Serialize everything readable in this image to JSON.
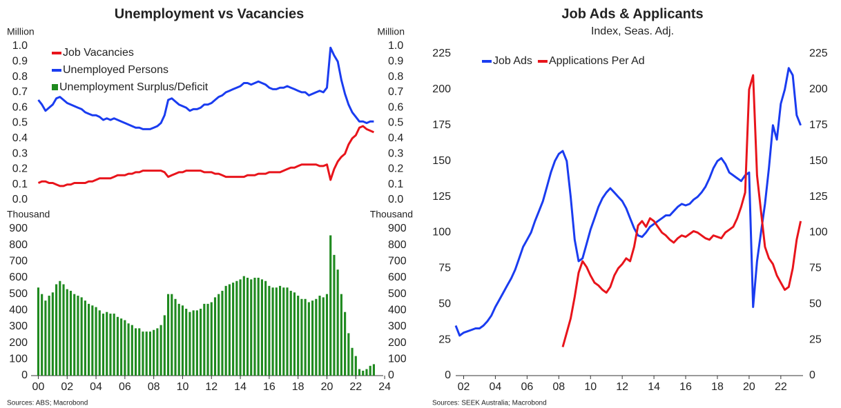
{
  "chart_data": [
    {
      "type": "line",
      "title": "Unemployment vs Vacancies",
      "y_label": "Million",
      "y2_label": "Million",
      "x": [
        2000,
        2000.25,
        2000.5,
        2000.75,
        2001,
        2001.25,
        2001.5,
        2001.75,
        2002,
        2002.25,
        2002.5,
        2002.75,
        2003,
        2003.25,
        2003.5,
        2003.75,
        2004,
        2004.25,
        2004.5,
        2004.75,
        2005,
        2005.25,
        2005.5,
        2005.75,
        2006,
        2006.25,
        2006.5,
        2006.75,
        2007,
        2007.25,
        2007.5,
        2007.75,
        2008,
        2008.25,
        2008.5,
        2008.75,
        2009,
        2009.25,
        2009.5,
        2009.75,
        2010,
        2010.25,
        2010.5,
        2010.75,
        2011,
        2011.25,
        2011.5,
        2011.75,
        2012,
        2012.25,
        2012.5,
        2012.75,
        2013,
        2013.25,
        2013.5,
        2013.75,
        2014,
        2014.25,
        2014.5,
        2014.75,
        2015,
        2015.25,
        2015.5,
        2015.75,
        2016,
        2016.25,
        2016.5,
        2016.75,
        2017,
        2017.25,
        2017.5,
        2017.75,
        2018,
        2018.25,
        2018.5,
        2018.75,
        2019,
        2019.25,
        2019.5,
        2019.75,
        2020,
        2020.25,
        2020.5,
        2020.75,
        2021,
        2021.25,
        2021.5,
        2021.75,
        2022,
        2022.25,
        2022.5,
        2022.75,
        2023,
        2023.25
      ],
      "series": [
        {
          "name": "Job Vacancies",
          "color": "#e8141b",
          "values": [
            0.11,
            0.12,
            0.12,
            0.11,
            0.11,
            0.1,
            0.09,
            0.09,
            0.1,
            0.1,
            0.11,
            0.11,
            0.11,
            0.11,
            0.12,
            0.12,
            0.13,
            0.14,
            0.14,
            0.14,
            0.14,
            0.15,
            0.16,
            0.16,
            0.16,
            0.17,
            0.17,
            0.18,
            0.18,
            0.19,
            0.19,
            0.19,
            0.19,
            0.19,
            0.19,
            0.18,
            0.15,
            0.16,
            0.17,
            0.18,
            0.18,
            0.19,
            0.19,
            0.19,
            0.19,
            0.19,
            0.18,
            0.18,
            0.18,
            0.17,
            0.17,
            0.16,
            0.15,
            0.15,
            0.15,
            0.15,
            0.15,
            0.15,
            0.16,
            0.16,
            0.16,
            0.17,
            0.17,
            0.17,
            0.18,
            0.18,
            0.18,
            0.18,
            0.19,
            0.2,
            0.21,
            0.21,
            0.22,
            0.23,
            0.23,
            0.23,
            0.23,
            0.23,
            0.22,
            0.22,
            0.23,
            0.13,
            0.2,
            0.25,
            0.28,
            0.3,
            0.36,
            0.4,
            0.42,
            0.47,
            0.48,
            0.46,
            0.45,
            0.44
          ]
        },
        {
          "name": "Unemployed Persons",
          "color": "#1a3cf0",
          "values": [
            0.65,
            0.62,
            0.58,
            0.6,
            0.62,
            0.66,
            0.67,
            0.65,
            0.63,
            0.62,
            0.61,
            0.6,
            0.59,
            0.57,
            0.56,
            0.55,
            0.55,
            0.54,
            0.52,
            0.53,
            0.52,
            0.53,
            0.52,
            0.51,
            0.5,
            0.49,
            0.48,
            0.47,
            0.47,
            0.46,
            0.46,
            0.46,
            0.47,
            0.48,
            0.5,
            0.55,
            0.65,
            0.66,
            0.64,
            0.62,
            0.61,
            0.6,
            0.58,
            0.59,
            0.59,
            0.6,
            0.62,
            0.62,
            0.63,
            0.65,
            0.67,
            0.68,
            0.7,
            0.71,
            0.72,
            0.73,
            0.74,
            0.76,
            0.76,
            0.75,
            0.76,
            0.77,
            0.76,
            0.75,
            0.73,
            0.72,
            0.72,
            0.73,
            0.73,
            0.74,
            0.73,
            0.72,
            0.71,
            0.7,
            0.7,
            0.68,
            0.69,
            0.7,
            0.71,
            0.7,
            0.73,
            0.99,
            0.94,
            0.9,
            0.78,
            0.69,
            0.62,
            0.57,
            0.54,
            0.51,
            0.51,
            0.5,
            0.51,
            0.51
          ]
        }
      ],
      "xlim": [
        1999.5,
        2023.9
      ],
      "ylim": [
        0,
        1
      ],
      "yticks": [
        {
          "value": 0,
          "label": "0.0"
        },
        0.1,
        0.2,
        0.3,
        0.4,
        0.5,
        0.6,
        0.7,
        0.8,
        0.9,
        {
          "value": 1,
          "label": "1.0"
        }
      ],
      "y2lim": [
        0,
        1
      ],
      "y2ticks": [
        {
          "value": 0,
          "label": "0.0"
        },
        0.1,
        0.2,
        0.3,
        0.4,
        0.5,
        0.6,
        0.7,
        0.8,
        0.9,
        {
          "value": 1,
          "label": "1.0"
        }
      ]
    },
    {
      "type": "bar",
      "y_label": "Thousand",
      "y2_label": "Thousand",
      "source": "Sources: ABS; Macrobond",
      "x": [
        2000,
        2000.25,
        2000.5,
        2000.75,
        2001,
        2001.25,
        2001.5,
        2001.75,
        2002,
        2002.25,
        2002.5,
        2002.75,
        2003,
        2003.25,
        2003.5,
        2003.75,
        2004,
        2004.25,
        2004.5,
        2004.75,
        2005,
        2005.25,
        2005.5,
        2005.75,
        2006,
        2006.25,
        2006.5,
        2006.75,
        2007,
        2007.25,
        2007.5,
        2007.75,
        2008,
        2008.25,
        2008.5,
        2008.75,
        2009,
        2009.25,
        2009.5,
        2009.75,
        2010,
        2010.25,
        2010.5,
        2010.75,
        2011,
        2011.25,
        2011.5,
        2011.75,
        2012,
        2012.25,
        2012.5,
        2012.75,
        2013,
        2013.25,
        2013.5,
        2013.75,
        2014,
        2014.25,
        2014.5,
        2014.75,
        2015,
        2015.25,
        2015.5,
        2015.75,
        2016,
        2016.25,
        2016.5,
        2016.75,
        2017,
        2017.25,
        2017.5,
        2017.75,
        2018,
        2018.25,
        2018.5,
        2018.75,
        2019,
        2019.25,
        2019.5,
        2019.75,
        2020,
        2020.25,
        2020.5,
        2020.75,
        2021,
        2021.25,
        2021.5,
        2021.75,
        2022,
        2022.25,
        2022.5,
        2022.75,
        2023,
        2023.25
      ],
      "series": [
        {
          "name": "Unemployment Surplus/Deficit",
          "color": "#1f8a1f",
          "values": [
            540,
            500,
            460,
            490,
            510,
            560,
            580,
            560,
            530,
            520,
            500,
            490,
            480,
            460,
            440,
            430,
            420,
            400,
            380,
            390,
            380,
            380,
            360,
            350,
            340,
            320,
            310,
            290,
            290,
            270,
            270,
            270,
            280,
            290,
            310,
            370,
            500,
            500,
            470,
            440,
            430,
            410,
            390,
            400,
            400,
            410,
            440,
            440,
            450,
            480,
            500,
            520,
            550,
            560,
            570,
            580,
            590,
            610,
            600,
            590,
            600,
            600,
            590,
            580,
            550,
            540,
            540,
            550,
            540,
            540,
            520,
            510,
            490,
            470,
            470,
            450,
            460,
            470,
            490,
            480,
            500,
            860,
            740,
            650,
            500,
            390,
            260,
            170,
            120,
            40,
            30,
            40,
            60,
            70
          ]
        }
      ],
      "xlim": [
        1999.5,
        2023.9
      ],
      "ylim": [
        0,
        900
      ],
      "yticks": [
        0,
        100,
        200,
        300,
        400,
        500,
        600,
        700,
        800,
        900
      ],
      "y2lim": [
        0,
        900
      ],
      "y2ticks": [
        0,
        100,
        200,
        300,
        400,
        500,
        600,
        700,
        800,
        900
      ],
      "xticks": [
        {
          "value": 2000,
          "label": "00"
        },
        {
          "value": 2002,
          "label": "02"
        },
        {
          "value": 2004,
          "label": "04"
        },
        {
          "value": 2006,
          "label": "06"
        },
        {
          "value": 2008,
          "label": "08"
        },
        {
          "value": 2010,
          "label": "10"
        },
        {
          "value": 2012,
          "label": "12"
        },
        {
          "value": 2014,
          "label": "14"
        },
        {
          "value": 2016,
          "label": "16"
        },
        {
          "value": 2018,
          "label": "18"
        },
        {
          "value": 2020,
          "label": "20"
        },
        {
          "value": 2022,
          "label": "22"
        },
        {
          "value": 2024,
          "label": "24"
        }
      ]
    },
    {
      "type": "line",
      "title": "Job Ads & Applicants",
      "subtitle": "Index, Seas. Adj.",
      "source": "Sources: SEEK Australia; Macrobond",
      "x": [
        2001.5,
        2001.75,
        2002,
        2002.25,
        2002.5,
        2002.75,
        2003,
        2003.25,
        2003.5,
        2003.75,
        2004,
        2004.25,
        2004.5,
        2004.75,
        2005,
        2005.25,
        2005.5,
        2005.75,
        2006,
        2006.25,
        2006.5,
        2006.75,
        2007,
        2007.25,
        2007.5,
        2007.75,
        2008,
        2008.25,
        2008.5,
        2008.75,
        2009,
        2009.25,
        2009.5,
        2009.75,
        2010,
        2010.25,
        2010.5,
        2010.75,
        2011,
        2011.25,
        2011.5,
        2011.75,
        2012,
        2012.25,
        2012.5,
        2012.75,
        2013,
        2013.25,
        2013.5,
        2013.75,
        2014,
        2014.25,
        2014.5,
        2014.75,
        2015,
        2015.25,
        2015.5,
        2015.75,
        2016,
        2016.25,
        2016.5,
        2016.75,
        2017,
        2017.25,
        2017.5,
        2017.75,
        2018,
        2018.25,
        2018.5,
        2018.75,
        2019,
        2019.25,
        2019.5,
        2019.75,
        2020,
        2020.25,
        2020.5,
        2020.75,
        2021,
        2021.25,
        2021.5,
        2021.75,
        2022,
        2022.25,
        2022.5,
        2022.75,
        2023,
        2023.25
      ],
      "series": [
        {
          "name": "Job Ads",
          "color": "#1a3cf0",
          "values": [
            35,
            28,
            30,
            31,
            32,
            33,
            33,
            35,
            38,
            42,
            48,
            53,
            58,
            63,
            68,
            74,
            82,
            90,
            95,
            100,
            108,
            115,
            122,
            132,
            142,
            150,
            155,
            157,
            150,
            125,
            95,
            80,
            82,
            92,
            102,
            110,
            118,
            124,
            128,
            131,
            128,
            125,
            122,
            117,
            110,
            103,
            98,
            97,
            100,
            104,
            106,
            108,
            110,
            112,
            112,
            115,
            118,
            120,
            119,
            120,
            123,
            125,
            128,
            132,
            138,
            145,
            150,
            152,
            148,
            142,
            140,
            138,
            136,
            140,
            142,
            48,
            80,
            100,
            120,
            145,
            175,
            165,
            190,
            200,
            215,
            210,
            182,
            175
          ]
        },
        {
          "name": "Applications Per Ad",
          "color": "#e8141b",
          "values": [
            null,
            null,
            null,
            null,
            null,
            null,
            null,
            null,
            null,
            null,
            null,
            null,
            null,
            null,
            null,
            null,
            null,
            null,
            null,
            null,
            null,
            null,
            null,
            null,
            null,
            null,
            null,
            20,
            30,
            40,
            55,
            72,
            80,
            76,
            70,
            65,
            63,
            60,
            58,
            62,
            70,
            75,
            78,
            82,
            80,
            90,
            105,
            108,
            104,
            110,
            108,
            104,
            100,
            98,
            95,
            93,
            96,
            98,
            97,
            99,
            101,
            100,
            98,
            96,
            95,
            98,
            97,
            96,
            100,
            102,
            104,
            110,
            118,
            128,
            200,
            210,
            140,
            115,
            90,
            82,
            78,
            70,
            65,
            60,
            62,
            75,
            95,
            108
          ]
        }
      ],
      "xlim": [
        2001.5,
        2023.4
      ],
      "ylim": [
        0,
        225
      ],
      "yticks": [
        0,
        25,
        50,
        75,
        100,
        125,
        150,
        175,
        200,
        225
      ],
      "y2lim": [
        0,
        225
      ],
      "y2ticks": [
        0,
        25,
        50,
        75,
        100,
        125,
        150,
        175,
        200,
        225
      ],
      "xticks": [
        {
          "value": 2002,
          "label": "02"
        },
        {
          "value": 2004,
          "label": "04"
        },
        {
          "value": 2006,
          "label": "06"
        },
        {
          "value": 2008,
          "label": "08"
        },
        {
          "value": 2010,
          "label": "10"
        },
        {
          "value": 2012,
          "label": "12"
        },
        {
          "value": 2014,
          "label": "14"
        },
        {
          "value": 2016,
          "label": "16"
        },
        {
          "value": 2018,
          "label": "18"
        },
        {
          "value": 2020,
          "label": "20"
        },
        {
          "value": 2022,
          "label": "22"
        }
      ]
    }
  ]
}
